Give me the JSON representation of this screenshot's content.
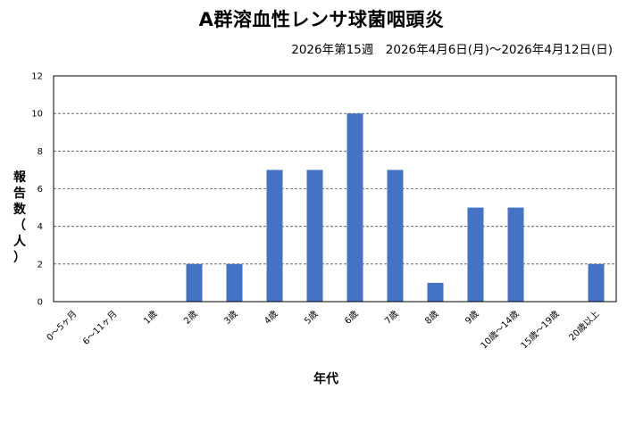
{
  "chart_data": {
    "type": "bar",
    "title": "A群溶血性レンサ球菌咽頭炎",
    "subtitle": "2026年第15週　2026年4月6日(月)～2026年4月12日(日)",
    "xlabel": "年代",
    "ylabel_chars": [
      "報",
      "告",
      "数",
      "（",
      "人",
      "）"
    ],
    "categories": [
      "0～5ヶ月",
      "6～11ヶ月",
      "1歳",
      "2歳",
      "3歳",
      "4歳",
      "5歳",
      "6歳",
      "7歳",
      "8歳",
      "9歳",
      "10歳～14歳",
      "15歳～19歳",
      "20歳以上"
    ],
    "values": [
      0,
      0,
      0,
      2,
      2,
      7,
      7,
      10,
      7,
      1,
      5,
      5,
      0,
      2
    ],
    "ylim": [
      0,
      12
    ],
    "yticks": [
      0,
      2,
      4,
      6,
      8,
      10,
      12
    ],
    "grid": true,
    "bar_color": "#4472c4"
  }
}
